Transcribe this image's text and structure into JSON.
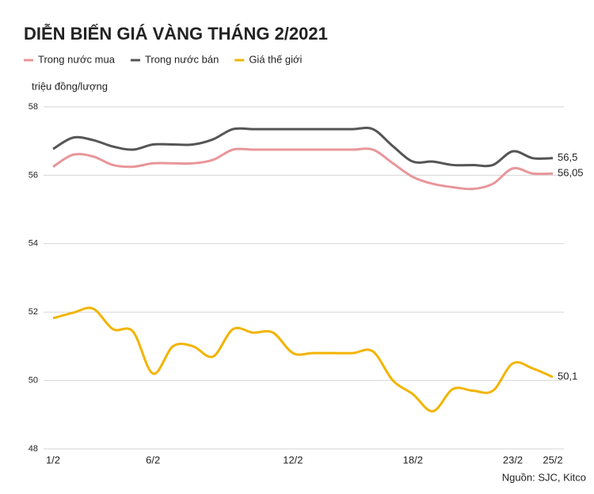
{
  "chart_data": {
    "type": "line",
    "title": "DIỄN BIẾN GIÁ VÀNG THÁNG 2/2021",
    "y_label": "triệu đồng/lượng",
    "source": "Nguồn: SJC, Kitco",
    "categories": [
      "1/2",
      null,
      null,
      null,
      null,
      "6/2",
      null,
      null,
      null,
      null,
      null,
      null,
      "12/2",
      null,
      null,
      null,
      null,
      null,
      "18/2",
      null,
      null,
      null,
      null,
      "23/2",
      null,
      "25/2"
    ],
    "series": [
      {
        "name": "Trong nước mua",
        "color": "#e8969a",
        "values": [
          56.25,
          56.6,
          56.55,
          56.3,
          56.25,
          56.35,
          56.35,
          56.35,
          56.45,
          56.75,
          56.75,
          56.75,
          56.75,
          56.75,
          56.75,
          56.75,
          56.75,
          56.35,
          55.95,
          55.75,
          55.65,
          55.6,
          55.75,
          56.2,
          56.05,
          56.05
        ],
        "value_labels": [
          null,
          null,
          null,
          null,
          null,
          null,
          null,
          null,
          null,
          null,
          null,
          null,
          null,
          null,
          null,
          null,
          null,
          null,
          null,
          null,
          null,
          null,
          null,
          null,
          null,
          "56,05"
        ]
      },
      {
        "name": "Trong nước bán",
        "color": "#555555",
        "values": [
          56.77,
          57.1,
          57.03,
          56.84,
          56.75,
          56.9,
          56.9,
          56.9,
          57.05,
          57.35,
          57.35,
          57.35,
          57.35,
          57.35,
          57.35,
          57.35,
          57.35,
          56.85,
          56.4,
          56.4,
          56.3,
          56.3,
          56.3,
          56.7,
          56.5,
          56.5
        ],
        "value_labels": [
          null,
          null,
          null,
          null,
          null,
          null,
          null,
          null,
          null,
          null,
          null,
          null,
          null,
          null,
          null,
          null,
          null,
          null,
          null,
          null,
          null,
          null,
          null,
          null,
          null,
          "56,5"
        ]
      },
      {
        "name": "Giá thế giới",
        "color": "#f2b400",
        "values": [
          51.82,
          51.98,
          52.1,
          51.5,
          51.43,
          50.2,
          51.0,
          51.0,
          50.7,
          51.5,
          51.4,
          51.4,
          50.8,
          50.8,
          50.8,
          50.8,
          50.85,
          50.0,
          49.6,
          49.1,
          49.75,
          49.7,
          49.7,
          50.5,
          50.35,
          50.1
        ],
        "value_labels": [
          null,
          null,
          null,
          null,
          null,
          null,
          null,
          null,
          null,
          null,
          null,
          null,
          null,
          null,
          null,
          null,
          null,
          null,
          null,
          null,
          null,
          null,
          null,
          null,
          null,
          "50,1"
        ]
      }
    ],
    "ylim": [
      48,
      58
    ],
    "yticks": [
      48,
      50,
      52,
      54,
      56,
      58
    ],
    "grid": true
  }
}
